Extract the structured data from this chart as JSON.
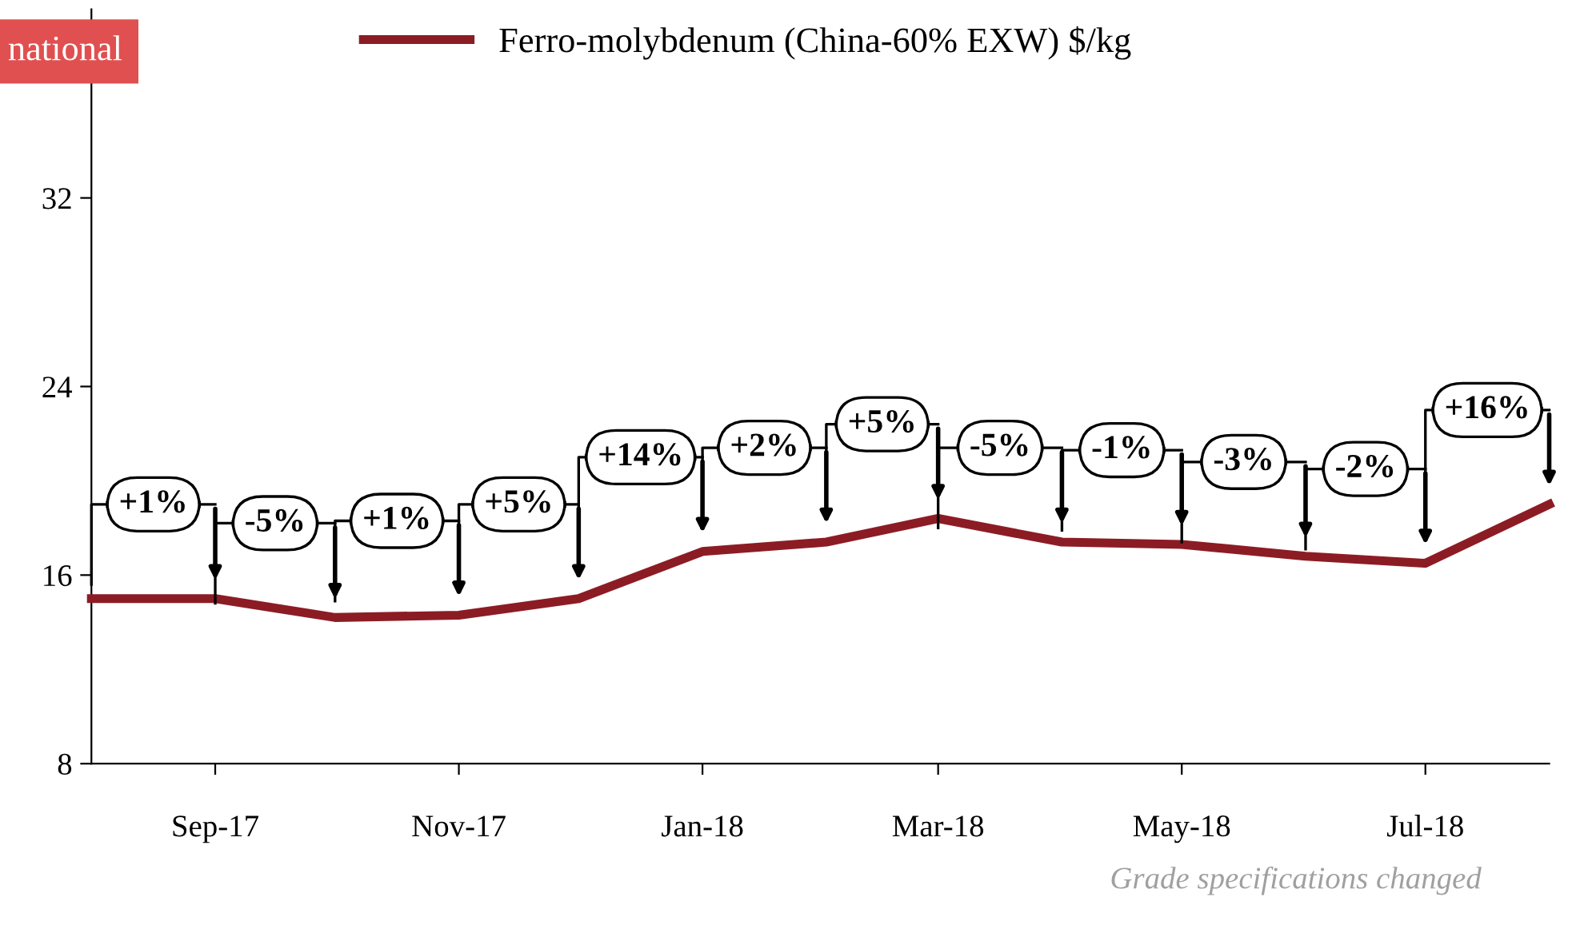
{
  "chart_data": {
    "type": "line",
    "x": [
      "2017-08",
      "2017-09",
      "2017-10",
      "2017-11",
      "2017-12",
      "2018-01",
      "2018-02",
      "2018-03",
      "2018-04",
      "2018-05",
      "2018-06",
      "2018-07",
      "2018-08"
    ],
    "series": [
      {
        "name": "Ferro-molybdenum (China-60% EXW) $/kg",
        "color": "#8c1c24",
        "values": [
          15.0,
          15.0,
          14.2,
          14.3,
          15.0,
          17.0,
          17.4,
          18.4,
          17.4,
          17.3,
          16.8,
          16.5,
          19.0
        ]
      }
    ],
    "xlim": [
      "2017-08",
      "2018-08"
    ],
    "xticks": [
      {
        "value": "2017-09",
        "label": "Sep-17"
      },
      {
        "value": "2017-11",
        "label": "Nov-17"
      },
      {
        "value": "2018-01",
        "label": "Jan-18"
      },
      {
        "value": "2018-03",
        "label": "Mar-18"
      },
      {
        "value": "2018-05",
        "label": "May-18"
      },
      {
        "value": "2018-07",
        "label": "Jul-18"
      }
    ],
    "ylim": [
      8,
      40
    ],
    "yticks": [
      8,
      16,
      24,
      32
    ],
    "grid": false,
    "legend": "top",
    "marker": "none",
    "line_style": "solid",
    "annotations": [
      "national",
      {
        "text": "+1%",
        "x": "2017-09",
        "y": 15.0
      },
      {
        "text": "-5%",
        "x": "2017-10",
        "y": 14.2
      },
      {
        "text": "+1%",
        "x": "2017-11",
        "y": 14.3
      },
      {
        "text": "+5%",
        "x": "2017-12",
        "y": 15.0
      },
      {
        "text": "+14%",
        "x": "2018-01",
        "y": 17.0
      },
      {
        "text": "+2%",
        "x": "2018-02",
        "y": 17.4
      },
      {
        "text": "+5%",
        "x": "2018-03",
        "y": 18.4
      },
      {
        "text": "-5%",
        "x": "2018-04",
        "y": 17.4
      },
      {
        "text": "-1%",
        "x": "2018-05",
        "y": 17.3
      },
      {
        "text": "-3%",
        "x": "2018-06",
        "y": 16.8
      },
      {
        "text": "-2%",
        "x": "2018-07",
        "y": 16.5
      },
      {
        "text": "+16%",
        "x": "2018-08",
        "y": 19.0
      },
      "Grade specifications changed"
    ]
  }
}
